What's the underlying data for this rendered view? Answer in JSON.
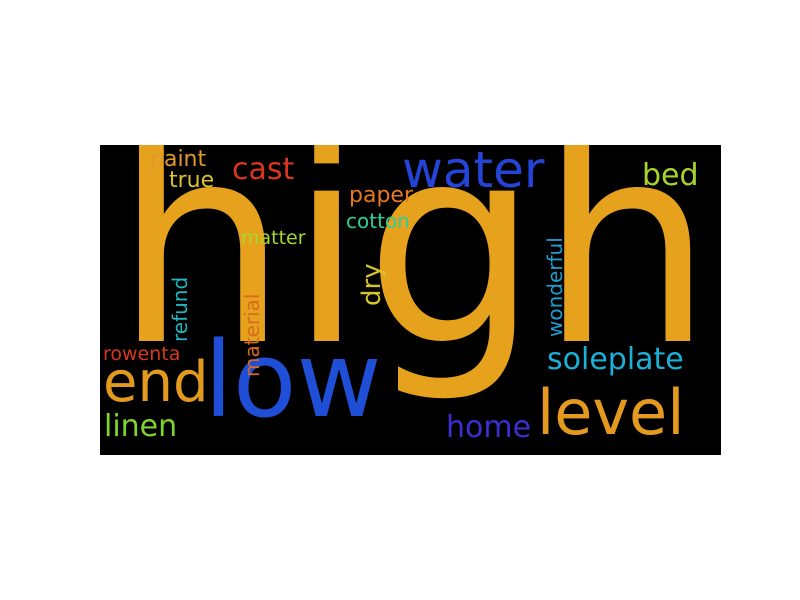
{
  "word_cloud": {
    "background": "#000000",
    "words": [
      {
        "id": "high",
        "text": "high",
        "color": "#e6a21c",
        "vertical": false
      },
      {
        "id": "low",
        "text": "low",
        "color": "#1f4fd6",
        "vertical": false
      },
      {
        "id": "water",
        "text": "water",
        "color": "#2444d8",
        "vertical": false
      },
      {
        "id": "end",
        "text": "end",
        "color": "#e29a1e",
        "vertical": false
      },
      {
        "id": "level",
        "text": "level",
        "color": "#e39a1f",
        "vertical": false
      },
      {
        "id": "soleplate",
        "text": "soleplate",
        "color": "#1ab0d8",
        "vertical": false
      },
      {
        "id": "home",
        "text": "home",
        "color": "#3b2fd0",
        "vertical": false
      },
      {
        "id": "linen",
        "text": "linen",
        "color": "#7fd32c",
        "vertical": false
      },
      {
        "id": "bed",
        "text": "bed",
        "color": "#a8d42a",
        "vertical": false
      },
      {
        "id": "cast",
        "text": "cast",
        "color": "#d9361e",
        "vertical": false
      },
      {
        "id": "paint",
        "text": "paint",
        "color": "#e09a2a",
        "vertical": false
      },
      {
        "id": "true",
        "text": "true",
        "color": "#d7c22a",
        "vertical": false
      },
      {
        "id": "paper",
        "text": "paper",
        "color": "#e7781e",
        "vertical": false
      },
      {
        "id": "cotton",
        "text": "cotton",
        "color": "#2bcf9c",
        "vertical": false
      },
      {
        "id": "matter",
        "text": "matter",
        "color": "#a9d62c",
        "vertical": false
      },
      {
        "id": "dry",
        "text": "dry",
        "color": "#d5c428",
        "vertical": true
      },
      {
        "id": "wonderful",
        "text": "wonderful",
        "color": "#1e9ed0",
        "vertical": true
      },
      {
        "id": "material",
        "text": "material",
        "color": "#d96a1e",
        "vertical": true
      },
      {
        "id": "refund",
        "text": "refund",
        "color": "#1fb6c2",
        "vertical": true
      },
      {
        "id": "rowenta",
        "text": "rowenta",
        "color": "#d9361f",
        "vertical": false
      }
    ]
  }
}
